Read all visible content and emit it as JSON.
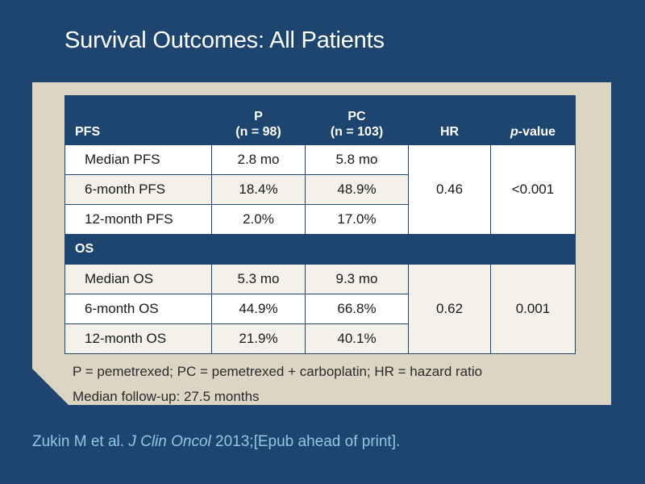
{
  "title": "Survival Outcomes: All Patients",
  "table": {
    "headers": {
      "label": "PFS",
      "p_name": "P",
      "p_n": "(n = 98)",
      "pc_name": "PC",
      "pc_n": "(n = 103)",
      "hr": "HR",
      "pvalue_italic": "p",
      "pvalue_rest": "-value"
    },
    "pfs_rows": [
      {
        "label": "Median PFS",
        "p": "2.8 mo",
        "pc": "5.8 mo"
      },
      {
        "label": "6-month PFS",
        "p": "18.4%",
        "pc": "48.9%"
      },
      {
        "label": "12-month PFS",
        "p": "2.0%",
        "pc": "17.0%"
      }
    ],
    "pfs_hr": "0.46",
    "pfs_pvalue": "<0.001",
    "os_section_label": "OS",
    "os_rows": [
      {
        "label": "Median OS",
        "p": "5.3 mo",
        "pc": "9.3 mo"
      },
      {
        "label": "6-month OS",
        "p": "44.9%",
        "pc": "66.8%"
      },
      {
        "label": "12-month OS",
        "p": "21.9%",
        "pc": "40.1%"
      }
    ],
    "os_hr": "0.62",
    "os_pvalue": "0.001"
  },
  "footnotes": {
    "abbreviations": "P = pemetrexed; PC = pemetrexed + carboplatin; HR = hazard ratio",
    "followup": "Median follow-up: 27.5 months"
  },
  "citation": {
    "authors": "Zukin M et al.",
    "journal": "J Clin Oncol",
    "details": "2013;[Epub ahead of print]."
  },
  "colors": {
    "background": "#1e4570",
    "panel": "#dcd5c4",
    "citation": "#8ec7e6"
  }
}
